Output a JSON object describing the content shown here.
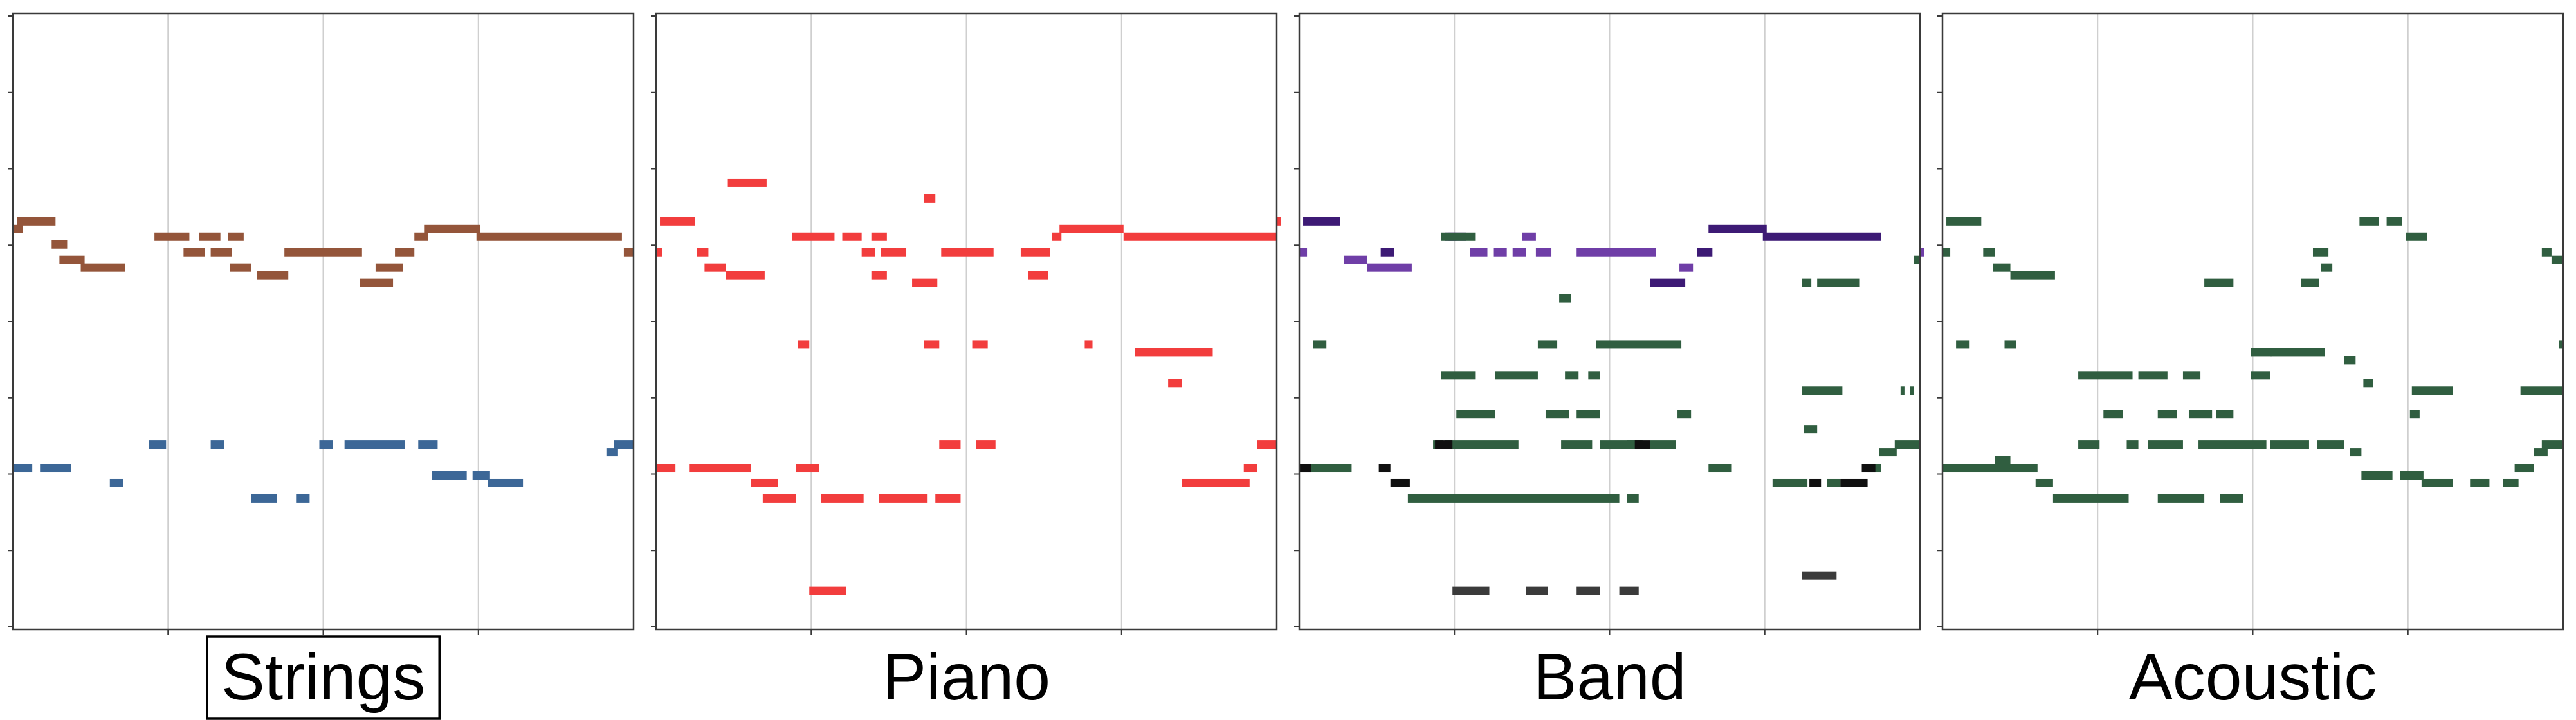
{
  "chart_data": [
    {
      "type": "pianoroll",
      "label": "Strings",
      "label_boxed": true,
      "xlim": [
        0,
        16
      ],
      "ylim": [
        0,
        80
      ],
      "tracks": [
        {
          "color": "#94553a",
          "notes": [
            [
              0,
              0.25,
              52
            ],
            [
              0.1,
              1.1,
              53
            ],
            [
              1.0,
              1.4,
              50
            ],
            [
              1.2,
              1.85,
              48
            ],
            [
              1.75,
              2.9,
              47
            ],
            [
              3.65,
              4.55,
              51
            ],
            [
              4.4,
              4.95,
              49
            ],
            [
              4.8,
              5.35,
              51
            ],
            [
              5.1,
              5.65,
              49
            ],
            [
              5.55,
              5.95,
              51
            ],
            [
              5.6,
              6.15,
              47
            ],
            [
              6.3,
              7.1,
              46
            ],
            [
              7.0,
              9.0,
              49
            ],
            [
              8.95,
              9.8,
              45
            ],
            [
              9.35,
              10.05,
              47
            ],
            [
              9.85,
              10.35,
              49
            ],
            [
              10.35,
              10.7,
              51
            ],
            [
              10.6,
              12.05,
              52
            ],
            [
              11.95,
              15.7,
              51
            ],
            [
              15.75,
              16,
              49
            ]
          ]
        },
        {
          "color": "#3c6797",
          "notes": [
            [
              0,
              0.5,
              21
            ],
            [
              0.7,
              1.5,
              21
            ],
            [
              2.5,
              2.85,
              19
            ],
            [
              3.5,
              3.95,
              24
            ],
            [
              5.1,
              5.45,
              24
            ],
            [
              6.15,
              6.8,
              17
            ],
            [
              7.3,
              7.65,
              17
            ],
            [
              7.9,
              8.25,
              24
            ],
            [
              8.55,
              10.1,
              24
            ],
            [
              10.45,
              10.95,
              24
            ],
            [
              10.8,
              11.7,
              20
            ],
            [
              11.85,
              12.3,
              20
            ],
            [
              12.25,
              13.15,
              19
            ],
            [
              15.3,
              15.6,
              23
            ],
            [
              15.5,
              16,
              24
            ]
          ]
        }
      ]
    },
    {
      "type": "pianoroll",
      "label": "Piano",
      "label_boxed": false,
      "xlim": [
        0,
        16
      ],
      "ylim": [
        0,
        80
      ],
      "tracks": [
        {
          "color": "#f23d3d",
          "notes": [
            [
              0,
              0.15,
              49
            ],
            [
              0.1,
              1.0,
              53
            ],
            [
              1.05,
              1.35,
              49
            ],
            [
              1.25,
              1.8,
              47
            ],
            [
              1.8,
              2.8,
              46
            ],
            [
              1.85,
              2.85,
              58
            ],
            [
              3.65,
              3.95,
              37
            ],
            [
              3.6,
              4.2,
              21
            ],
            [
              3.5,
              4.6,
              51
            ],
            [
              4.8,
              5.3,
              51
            ],
            [
              5.3,
              5.65,
              49
            ],
            [
              5.55,
              5.95,
              51
            ],
            [
              5.55,
              5.95,
              46
            ],
            [
              5.8,
              6.45,
              49
            ],
            [
              6.6,
              7.25,
              45
            ],
            [
              6.9,
              7.2,
              56
            ],
            [
              6.9,
              7.3,
              37
            ],
            [
              7.35,
              8.7,
              49
            ],
            [
              8.15,
              8.55,
              37
            ],
            [
              8.25,
              8.75,
              24
            ],
            [
              9.4,
              10.15,
              49
            ],
            [
              9.6,
              10.1,
              46
            ],
            [
              10.2,
              10.45,
              51
            ],
            [
              10.4,
              12.05,
              52
            ],
            [
              11.05,
              11.25,
              37
            ],
            [
              12.05,
              16,
              51
            ],
            [
              12.35,
              14.35,
              36
            ],
            [
              13.2,
              13.55,
              32
            ],
            [
              13.55,
              15.3,
              19
            ],
            [
              15.15,
              15.5,
              21
            ],
            [
              15.5,
              16,
              24
            ],
            [
              16,
              16,
              53
            ],
            [
              0,
              0.5,
              21
            ],
            [
              0.85,
              2.45,
              21
            ],
            [
              2.45,
              3.15,
              19
            ],
            [
              2.75,
              3.6,
              17
            ],
            [
              4.25,
              5.35,
              17
            ],
            [
              5.75,
              7.0,
              17
            ],
            [
              7.2,
              7.85,
              17
            ],
            [
              7.3,
              7.85,
              24
            ],
            [
              3.95,
              4.9,
              5
            ]
          ]
        }
      ]
    },
    {
      "type": "pianoroll",
      "label": "Band",
      "label_boxed": false,
      "xlim": [
        0,
        16
      ],
      "ylim": [
        0,
        80
      ],
      "tracks": [
        {
          "color": "#3d1a75",
          "notes": [
            [
              0.1,
              1.05,
              53
            ],
            [
              2.1,
              2.45,
              49
            ],
            [
              3.75,
              4.3,
              51
            ],
            [
              9.05,
              9.95,
              45
            ],
            [
              10.25,
              10.65,
              49
            ],
            [
              10.55,
              12.05,
              52
            ],
            [
              11.95,
              15.0,
              51
            ]
          ]
        },
        {
          "color": "#6f3ea7",
          "notes": [
            [
              0,
              0.2,
              49
            ],
            [
              1.15,
              1.75,
              48
            ],
            [
              1.75,
              2.9,
              47
            ],
            [
              4.4,
              4.85,
              49
            ],
            [
              5.0,
              5.35,
              49
            ],
            [
              5.5,
              5.85,
              49
            ],
            [
              5.75,
              6.1,
              51
            ],
            [
              6.1,
              6.5,
              49
            ],
            [
              7.15,
              9.2,
              49
            ],
            [
              9.8,
              10.15,
              47
            ],
            [
              16,
              16,
              49
            ],
            [
              3.85,
              4.05,
              51
            ]
          ]
        },
        {
          "color": "#305e40",
          "notes": [
            [
              0.35,
              0.7,
              37
            ],
            [
              3.65,
              4.55,
              51
            ],
            [
              3.65,
              4.55,
              33
            ],
            [
              4.05,
              5.05,
              28
            ],
            [
              5.05,
              6.15,
              33
            ],
            [
              6.15,
              6.65,
              37
            ],
            [
              6.35,
              6.95,
              28
            ],
            [
              6.85,
              7.2,
              33
            ],
            [
              7.15,
              7.75,
              28
            ],
            [
              7.45,
              7.75,
              33
            ],
            [
              6.7,
              7.0,
              43
            ],
            [
              7.65,
              9.85,
              37
            ],
            [
              9.75,
              10.1,
              28
            ],
            [
              8.45,
              8.85,
              24
            ],
            [
              0,
              1.35,
              21
            ],
            [
              2.8,
              8.25,
              17
            ],
            [
              8.45,
              8.75,
              17
            ],
            [
              3.45,
              3.7,
              24
            ],
            [
              3.75,
              5.65,
              24
            ],
            [
              6.75,
              7.55,
              24
            ],
            [
              7.75,
              8.8,
              24
            ],
            [
              9.05,
              9.7,
              24
            ],
            [
              10.55,
              11.15,
              21
            ],
            [
              12.2,
              13.1,
              19
            ],
            [
              13.6,
              13.95,
              19
            ],
            [
              14.65,
              15.0,
              21
            ],
            [
              14.95,
              15.4,
              23
            ],
            [
              15.35,
              16,
              24
            ],
            [
              12.95,
              13.2,
              45
            ],
            [
              13.35,
              14.45,
              45
            ],
            [
              12.95,
              14.0,
              31
            ],
            [
              13.0,
              13.35,
              26
            ],
            [
              15.5,
              15.6,
              31
            ],
            [
              15.75,
              15.85,
              31
            ],
            [
              15.85,
              16,
              48
            ]
          ]
        },
        {
          "color": "#101010",
          "notes": [
            [
              0,
              0.3,
              21
            ],
            [
              2.05,
              2.35,
              21
            ],
            [
              2.35,
              2.85,
              19
            ],
            [
              3.5,
              3.95,
              24
            ],
            [
              8.65,
              9.05,
              24
            ],
            [
              13.15,
              13.45,
              19
            ],
            [
              13.95,
              14.65,
              19
            ],
            [
              14.5,
              14.85,
              21
            ]
          ]
        },
        {
          "color": "#3b3b3b",
          "notes": [
            [
              3.95,
              4.9,
              5
            ],
            [
              5.85,
              6.4,
              5
            ],
            [
              7.15,
              7.75,
              5
            ],
            [
              8.25,
              8.75,
              5
            ],
            [
              12.95,
              13.85,
              7
            ]
          ]
        }
      ]
    },
    {
      "type": "pianoroll",
      "label": "Acoustic",
      "label_boxed": false,
      "xlim": [
        0,
        16
      ],
      "ylim": [
        0,
        80
      ],
      "tracks": [
        {
          "color": "#305e40",
          "notes": [
            [
              0.1,
              1.0,
              53
            ],
            [
              0,
              0.2,
              49
            ],
            [
              1.05,
              1.35,
              49
            ],
            [
              1.3,
              1.75,
              47
            ],
            [
              1.75,
              2.9,
              46
            ],
            [
              0.35,
              0.7,
              37
            ],
            [
              1.6,
              1.9,
              37
            ],
            [
              6.75,
              7.5,
              45
            ],
            [
              3.5,
              4.9,
              33
            ],
            [
              4.15,
              4.65,
              28
            ],
            [
              5.05,
              5.8,
              33
            ],
            [
              5.55,
              6.05,
              28
            ],
            [
              6.2,
              6.65,
              33
            ],
            [
              6.35,
              6.95,
              28
            ],
            [
              7.05,
              7.5,
              28
            ],
            [
              7.95,
              8.45,
              33
            ],
            [
              7.95,
              8.5,
              36
            ],
            [
              8.45,
              9.85,
              36
            ],
            [
              9.55,
              9.95,
              49
            ],
            [
              9.25,
              9.7,
              45
            ],
            [
              9.75,
              10.05,
              47
            ],
            [
              10.35,
              10.65,
              35
            ],
            [
              10.85,
              11.1,
              32
            ],
            [
              10.75,
              11.25,
              53
            ],
            [
              11.45,
              11.85,
              53
            ],
            [
              11.95,
              12.5,
              51
            ],
            [
              12.1,
              13.15,
              31
            ],
            [
              12.05,
              12.3,
              28
            ],
            [
              15.45,
              15.7,
              49
            ],
            [
              15.7,
              16,
              48
            ],
            [
              15.9,
              16,
              37
            ],
            [
              14.9,
              16,
              31
            ],
            [
              0,
              2.45,
              21
            ],
            [
              1.35,
              1.75,
              22
            ],
            [
              2.4,
              2.85,
              19
            ],
            [
              2.85,
              4.8,
              17
            ],
            [
              5.55,
              6.75,
              17
            ],
            [
              7.15,
              7.75,
              17
            ],
            [
              3.5,
              4.05,
              24
            ],
            [
              4.75,
              5.05,
              24
            ],
            [
              5.3,
              6.2,
              24
            ],
            [
              6.6,
              8.35,
              24
            ],
            [
              8.45,
              9.45,
              24
            ],
            [
              9.65,
              10.35,
              24
            ],
            [
              10.5,
              10.8,
              23
            ],
            [
              10.8,
              11.6,
              20
            ],
            [
              11.8,
              12.4,
              20
            ],
            [
              12.35,
              13.15,
              19
            ],
            [
              13.6,
              14.1,
              19
            ],
            [
              14.45,
              14.85,
              19
            ],
            [
              14.75,
              15.25,
              21
            ],
            [
              15.25,
              15.6,
              23
            ],
            [
              15.45,
              16,
              24
            ]
          ]
        }
      ]
    }
  ]
}
